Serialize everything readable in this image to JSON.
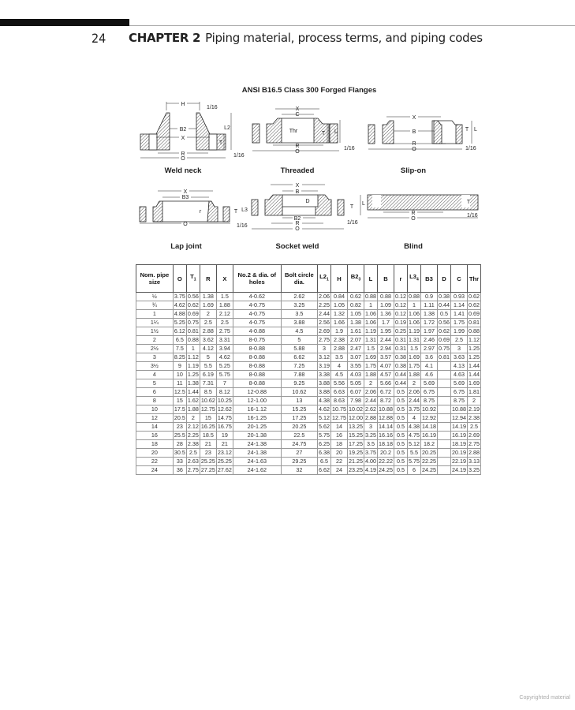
{
  "header": {
    "page_number": "24",
    "chapter_label": "CHAPTER 2",
    "chapter_title": "Piping material, process terms, and piping codes"
  },
  "figure": {
    "title": "ANSI B16.5 Class 300 Forged Flanges",
    "weld_neck": {
      "caption": "Weld neck",
      "H": "H",
      "gap1": "1/16",
      "B2": "B2",
      "X": "X",
      "R": "R",
      "O": "O",
      "L2": "L2",
      "T": "T",
      "gap2": "1/16"
    },
    "threaded": {
      "caption": "Threaded",
      "X": "X",
      "C": "C",
      "Thr": "Thr",
      "R": "R",
      "O": "O",
      "T": "T",
      "L": "L",
      "gap": "1/16"
    },
    "slip_on": {
      "caption": "Slip-on",
      "X": "X",
      "B": "B",
      "R": "R",
      "O": "O",
      "T": "T",
      "L": "L",
      "gap": "1/16"
    },
    "lap_joint": {
      "caption": "Lap joint",
      "X": "X",
      "B3": "B3",
      "r": "r",
      "O": "O",
      "T": "T",
      "L3": "L3",
      "gap": "1/16"
    },
    "socket_weld": {
      "caption": "Socket weld",
      "X": "X",
      "B": "B",
      "D": "D",
      "B2": "B2",
      "R": "R",
      "O": "O",
      "T": "T",
      "L": "L",
      "gap": "1/16"
    },
    "blind": {
      "caption": "Blind",
      "R": "R",
      "O": "O",
      "T": "T",
      "gap": "1/16"
    }
  },
  "table": {
    "headers": [
      {
        "text": "Nom. pipe size"
      },
      {
        "text": "O"
      },
      {
        "text": "T",
        "sub": "1"
      },
      {
        "text": "R"
      },
      {
        "text": "X"
      },
      {
        "text": "No.2 & dia. of holes"
      },
      {
        "text": "Bolt circle dia."
      },
      {
        "text": "L2",
        "sub": "1"
      },
      {
        "text": "H"
      },
      {
        "text": "B2",
        "sub": "3"
      },
      {
        "text": "L"
      },
      {
        "text": "B"
      },
      {
        "text": "r"
      },
      {
        "text": "L3",
        "sub": "4"
      },
      {
        "text": "B3"
      },
      {
        "text": "D"
      },
      {
        "text": "C"
      },
      {
        "text": "Thr"
      }
    ],
    "rows": [
      [
        "½",
        "3.75",
        "0.56",
        "1.38",
        "1.5",
        "4-0.62",
        "2.62",
        "2.06",
        "0.84",
        "0.62",
        "0.88",
        "0.88",
        "0.12",
        "0.88",
        "0.9",
        "0.38",
        "0.93",
        "0.62"
      ],
      [
        "¾",
        "4.62",
        "0.62",
        "1.69",
        "1.88",
        "4-0.75",
        "3.25",
        "2.25",
        "1.05",
        "0.82",
        "1",
        "1.09",
        "0.12",
        "1",
        "1.11",
        "0.44",
        "1.14",
        "0.62"
      ],
      [
        "1",
        "4.88",
        "0.69",
        "2",
        "2.12",
        "4-0.75",
        "3.5",
        "2.44",
        "1.32",
        "1.05",
        "1.06",
        "1.36",
        "0.12",
        "1.06",
        "1.38",
        "0.5",
        "1.41",
        "0.69"
      ],
      [
        "1¼",
        "5.25",
        "0.75",
        "2.5",
        "2.5",
        "4-0.75",
        "3.88",
        "2.56",
        "1.66",
        "1.38",
        "1.06",
        "1.7",
        "0.19",
        "1.06",
        "1.72",
        "0.56",
        "1.75",
        "0.81"
      ],
      [
        "1½",
        "6.12",
        "0.81",
        "2.88",
        "2.75",
        "4-0.88",
        "4.5",
        "2.69",
        "1.9",
        "1.61",
        "1.19",
        "1.95",
        "0.25",
        "1.19",
        "1.97",
        "0.62",
        "1.99",
        "0.88"
      ],
      [
        "2",
        "6.5",
        "0.88",
        "3.62",
        "3.31",
        "8-0.75",
        "5",
        "2.75",
        "2.38",
        "2.07",
        "1.31",
        "2.44",
        "0.31",
        "1.31",
        "2.46",
        "0.69",
        "2.5",
        "1.12"
      ],
      [
        "2½",
        "7.5",
        "1",
        "4.12",
        "3.94",
        "8-0.88",
        "5.88",
        "3",
        "2.88",
        "2.47",
        "1.5",
        "2.94",
        "0.31",
        "1.5",
        "2.97",
        "0.75",
        "3",
        "1.25"
      ],
      [
        "3",
        "8.25",
        "1.12",
        "5",
        "4.62",
        "8-0.88",
        "6.62",
        "3.12",
        "3.5",
        "3.07",
        "1.69",
        "3.57",
        "0.38",
        "1.69",
        "3.6",
        "0.81",
        "3.63",
        "1.25"
      ],
      [
        "3½",
        "9",
        "1.19",
        "5.5",
        "5.25",
        "8-0.88",
        "7.25",
        "3.19",
        "4",
        "3.55",
        "1.75",
        "4.07",
        "0.38",
        "1.75",
        "4.1",
        "",
        "4.13",
        "1.44"
      ],
      [
        "4",
        "10",
        "1.25",
        "6.19",
        "5.75",
        "8-0.88",
        "7.88",
        "3.38",
        "4.5",
        "4.03",
        "1.88",
        "4.57",
        "0.44",
        "1.88",
        "4.6",
        "",
        "4.63",
        "1.44"
      ],
      [
        "5",
        "11",
        "1.38",
        "7.31",
        "7",
        "8-0.88",
        "9.25",
        "3.88",
        "5.56",
        "5.05",
        "2",
        "5.66",
        "0.44",
        "2",
        "5.69",
        "",
        "5.69",
        "1.69"
      ],
      [
        "6",
        "12.5",
        "1.44",
        "8.5",
        "8.12",
        "12-0.88",
        "10.62",
        "3.88",
        "6.63",
        "6.07",
        "2.06",
        "6.72",
        "0.5",
        "2.06",
        "6.75",
        "",
        "6.75",
        "1.81"
      ],
      [
        "8",
        "15",
        "1.62",
        "10.62",
        "10.25",
        "12-1.00",
        "13",
        "4.38",
        "8.63",
        "7.98",
        "2.44",
        "8.72",
        "0.5",
        "2.44",
        "8.75",
        "",
        "8.75",
        "2"
      ],
      [
        "10",
        "17.5",
        "1.88",
        "12.75",
        "12.62",
        "16-1.12",
        "15.25",
        "4.62",
        "10.75",
        "10.02",
        "2.62",
        "10.88",
        "0.5",
        "3.75",
        "10.92",
        "",
        "10.88",
        "2.19"
      ],
      [
        "12",
        "20.5",
        "2",
        "15",
        "14.75",
        "16-1.25",
        "17.25",
        "5.12",
        "12.75",
        "12.00",
        "2.88",
        "12.88",
        "0.5",
        "4",
        "12.92",
        "",
        "12.94",
        "2.38"
      ],
      [
        "14",
        "23",
        "2.12",
        "16.25",
        "16.75",
        "20-1.25",
        "20.25",
        "5.62",
        "14",
        "13.25",
        "3",
        "14.14",
        "0.5",
        "4.38",
        "14.18",
        "",
        "14.19",
        "2.5"
      ],
      [
        "16",
        "25.5",
        "2.25",
        "18.5",
        "19",
        "20-1.38",
        "22.5",
        "5.75",
        "16",
        "15.25",
        "3.25",
        "16.16",
        "0.5",
        "4.75",
        "16.19",
        "",
        "16.19",
        "2.69"
      ],
      [
        "18",
        "28",
        "2.38",
        "21",
        "21",
        "24-1.38",
        "24.75",
        "6.25",
        "18",
        "17.25",
        "3.5",
        "18.18",
        "0.5",
        "5.12",
        "18.2",
        "",
        "18.19",
        "2.75"
      ],
      [
        "20",
        "30.5",
        "2.5",
        "23",
        "23.12",
        "24-1.38",
        "27",
        "6.38",
        "20",
        "19.25",
        "3.75",
        "20.2",
        "0.5",
        "5.5",
        "20.25",
        "",
        "20.19",
        "2.88"
      ],
      [
        "22",
        "33",
        "2.63",
        "25.25",
        "25.25",
        "24-1.63",
        "29.25",
        "6.5",
        "22",
        "21.25",
        "4.00",
        "22.22",
        "0.5",
        "5.75",
        "22.25",
        "",
        "22.19",
        "3.13"
      ],
      [
        "24",
        "36",
        "2.75",
        "27.25",
        "27.62",
        "24-1.62",
        "32",
        "6.62",
        "24",
        "23.25",
        "4.19",
        "24.25",
        "0.5",
        "6",
        "24.25",
        "",
        "24.19",
        "3.25"
      ]
    ]
  },
  "footer": {
    "copyright": "Copyrighted material"
  }
}
